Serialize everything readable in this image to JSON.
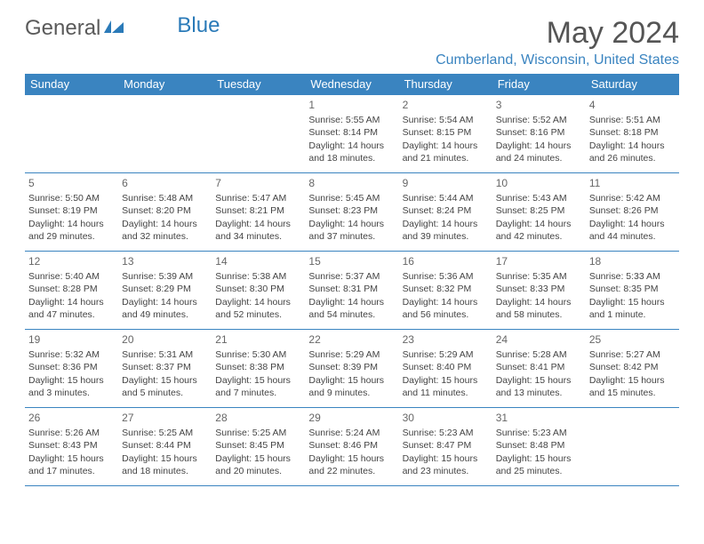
{
  "logo": {
    "text_general": "General",
    "text_blue": "Blue"
  },
  "title": "May 2024",
  "location": "Cumberland, Wisconsin, United States",
  "colors": {
    "header_bg": "#3a84c0",
    "header_text": "#ffffff",
    "border": "#3a84c0",
    "title_color": "#555555",
    "location_color": "#3a84c0",
    "body_text": "#444444"
  },
  "day_headers": [
    "Sunday",
    "Monday",
    "Tuesday",
    "Wednesday",
    "Thursday",
    "Friday",
    "Saturday"
  ],
  "weeks": [
    [
      null,
      null,
      null,
      {
        "n": "1",
        "sr": "5:55 AM",
        "ss": "8:14 PM",
        "dl": "14 hours and 18 minutes."
      },
      {
        "n": "2",
        "sr": "5:54 AM",
        "ss": "8:15 PM",
        "dl": "14 hours and 21 minutes."
      },
      {
        "n": "3",
        "sr": "5:52 AM",
        "ss": "8:16 PM",
        "dl": "14 hours and 24 minutes."
      },
      {
        "n": "4",
        "sr": "5:51 AM",
        "ss": "8:18 PM",
        "dl": "14 hours and 26 minutes."
      }
    ],
    [
      {
        "n": "5",
        "sr": "5:50 AM",
        "ss": "8:19 PM",
        "dl": "14 hours and 29 minutes."
      },
      {
        "n": "6",
        "sr": "5:48 AM",
        "ss": "8:20 PM",
        "dl": "14 hours and 32 minutes."
      },
      {
        "n": "7",
        "sr": "5:47 AM",
        "ss": "8:21 PM",
        "dl": "14 hours and 34 minutes."
      },
      {
        "n": "8",
        "sr": "5:45 AM",
        "ss": "8:23 PM",
        "dl": "14 hours and 37 minutes."
      },
      {
        "n": "9",
        "sr": "5:44 AM",
        "ss": "8:24 PM",
        "dl": "14 hours and 39 minutes."
      },
      {
        "n": "10",
        "sr": "5:43 AM",
        "ss": "8:25 PM",
        "dl": "14 hours and 42 minutes."
      },
      {
        "n": "11",
        "sr": "5:42 AM",
        "ss": "8:26 PM",
        "dl": "14 hours and 44 minutes."
      }
    ],
    [
      {
        "n": "12",
        "sr": "5:40 AM",
        "ss": "8:28 PM",
        "dl": "14 hours and 47 minutes."
      },
      {
        "n": "13",
        "sr": "5:39 AM",
        "ss": "8:29 PM",
        "dl": "14 hours and 49 minutes."
      },
      {
        "n": "14",
        "sr": "5:38 AM",
        "ss": "8:30 PM",
        "dl": "14 hours and 52 minutes."
      },
      {
        "n": "15",
        "sr": "5:37 AM",
        "ss": "8:31 PM",
        "dl": "14 hours and 54 minutes."
      },
      {
        "n": "16",
        "sr": "5:36 AM",
        "ss": "8:32 PM",
        "dl": "14 hours and 56 minutes."
      },
      {
        "n": "17",
        "sr": "5:35 AM",
        "ss": "8:33 PM",
        "dl": "14 hours and 58 minutes."
      },
      {
        "n": "18",
        "sr": "5:33 AM",
        "ss": "8:35 PM",
        "dl": "15 hours and 1 minute."
      }
    ],
    [
      {
        "n": "19",
        "sr": "5:32 AM",
        "ss": "8:36 PM",
        "dl": "15 hours and 3 minutes."
      },
      {
        "n": "20",
        "sr": "5:31 AM",
        "ss": "8:37 PM",
        "dl": "15 hours and 5 minutes."
      },
      {
        "n": "21",
        "sr": "5:30 AM",
        "ss": "8:38 PM",
        "dl": "15 hours and 7 minutes."
      },
      {
        "n": "22",
        "sr": "5:29 AM",
        "ss": "8:39 PM",
        "dl": "15 hours and 9 minutes."
      },
      {
        "n": "23",
        "sr": "5:29 AM",
        "ss": "8:40 PM",
        "dl": "15 hours and 11 minutes."
      },
      {
        "n": "24",
        "sr": "5:28 AM",
        "ss": "8:41 PM",
        "dl": "15 hours and 13 minutes."
      },
      {
        "n": "25",
        "sr": "5:27 AM",
        "ss": "8:42 PM",
        "dl": "15 hours and 15 minutes."
      }
    ],
    [
      {
        "n": "26",
        "sr": "5:26 AM",
        "ss": "8:43 PM",
        "dl": "15 hours and 17 minutes."
      },
      {
        "n": "27",
        "sr": "5:25 AM",
        "ss": "8:44 PM",
        "dl": "15 hours and 18 minutes."
      },
      {
        "n": "28",
        "sr": "5:25 AM",
        "ss": "8:45 PM",
        "dl": "15 hours and 20 minutes."
      },
      {
        "n": "29",
        "sr": "5:24 AM",
        "ss": "8:46 PM",
        "dl": "15 hours and 22 minutes."
      },
      {
        "n": "30",
        "sr": "5:23 AM",
        "ss": "8:47 PM",
        "dl": "15 hours and 23 minutes."
      },
      {
        "n": "31",
        "sr": "5:23 AM",
        "ss": "8:48 PM",
        "dl": "15 hours and 25 minutes."
      },
      null
    ]
  ],
  "labels": {
    "sunrise": "Sunrise: ",
    "sunset": "Sunset: ",
    "daylight": "Daylight: "
  }
}
